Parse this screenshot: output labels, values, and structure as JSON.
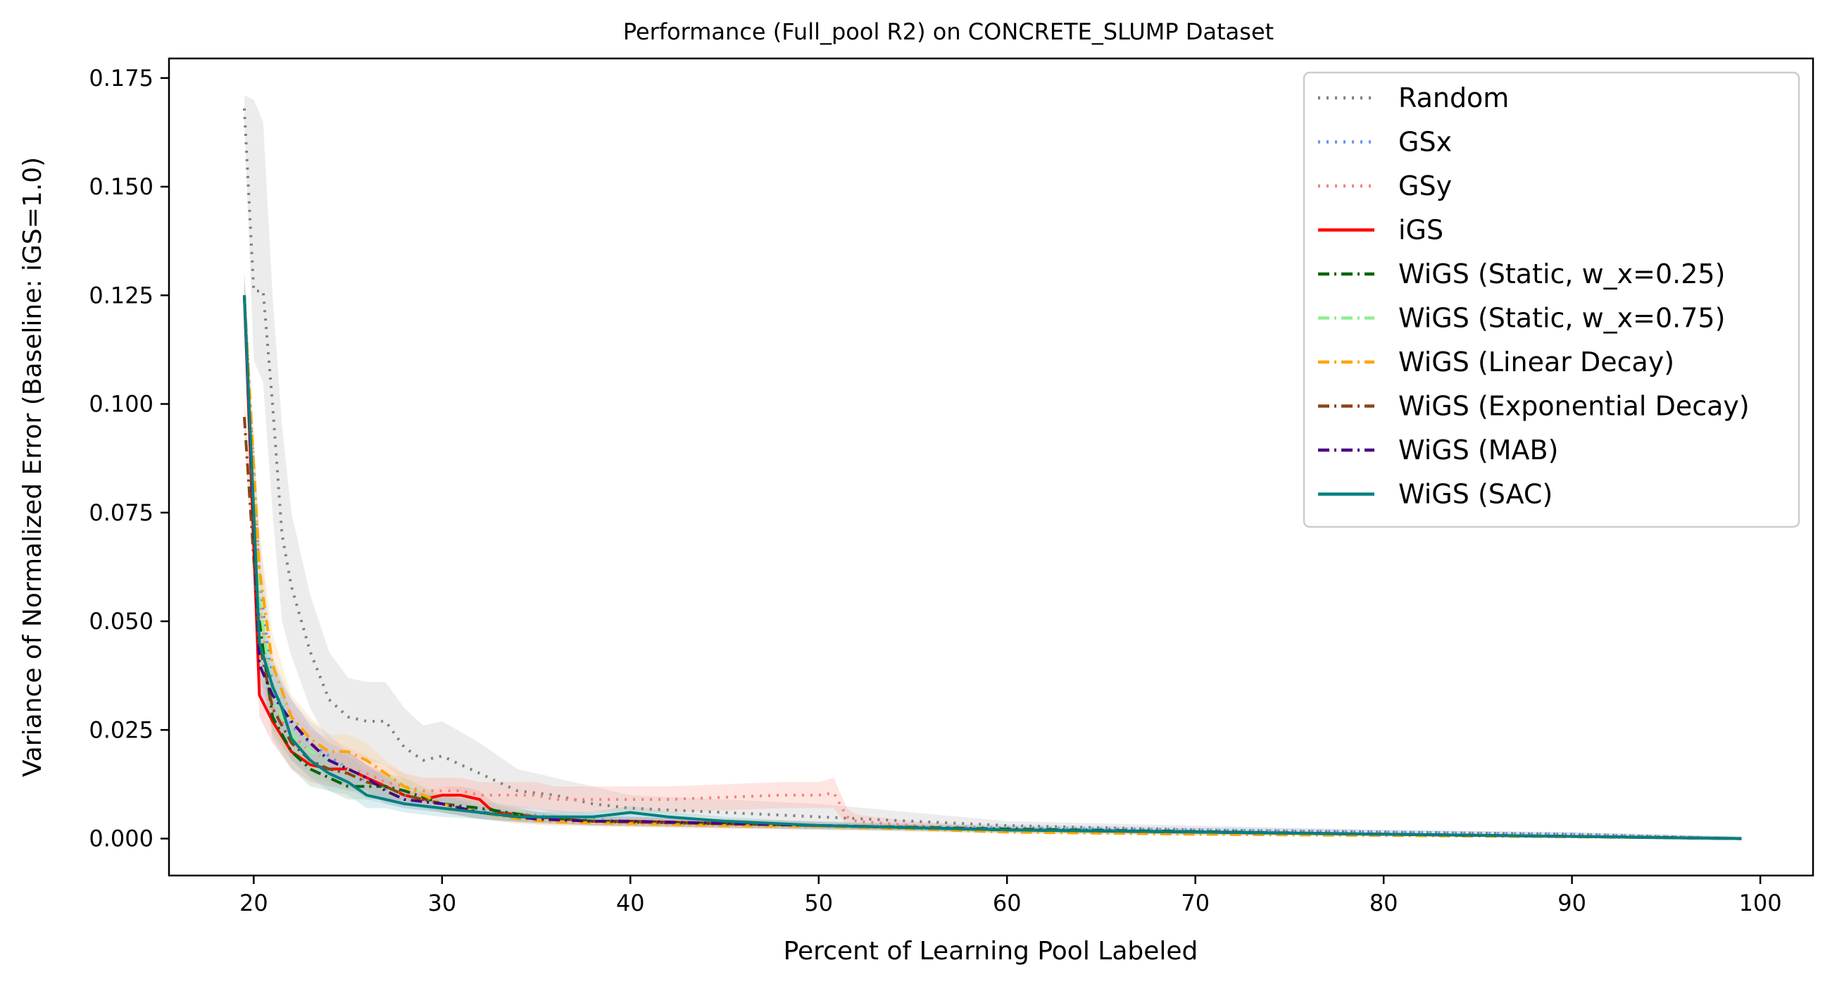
{
  "chart_data": {
    "type": "line",
    "title": "Performance (Full_pool R2) on CONCRETE_SLUMP Dataset",
    "xlabel": "Percent of Learning Pool Labeled",
    "ylabel": "Variance of Normalized Error (Baseline: iGS=1.0)",
    "xlim": [
      15.5,
      102.8
    ],
    "ylim": [
      -0.0085,
      0.1795
    ],
    "xticks": [
      20,
      30,
      40,
      50,
      60,
      70,
      80,
      90,
      100
    ],
    "xtick_labels": [
      "20",
      "30",
      "40",
      "50",
      "60",
      "70",
      "80",
      "90",
      "100"
    ],
    "yticks": [
      0.0,
      0.025,
      0.05,
      0.075,
      0.1,
      0.125,
      0.15,
      0.175
    ],
    "ytick_labels": [
      "0.000",
      "0.025",
      "0.050",
      "0.075",
      "0.100",
      "0.125",
      "0.150",
      "0.175"
    ],
    "grid": false,
    "legend_position": "top-right",
    "series": [
      {
        "name": "Random",
        "color": "#808080",
        "style": "dotted",
        "band_color": "#c8c8c8",
        "x": [
          19.5,
          20,
          20.5,
          21,
          21.5,
          22,
          23,
          24,
          25,
          26,
          27,
          28,
          29,
          30,
          32,
          34,
          36,
          38,
          40,
          45,
          50,
          55,
          60,
          70,
          80,
          90,
          99
        ],
        "y": [
          0.168,
          0.126,
          0.126,
          0.1,
          0.07,
          0.058,
          0.043,
          0.032,
          0.028,
          0.027,
          0.027,
          0.021,
          0.018,
          0.019,
          0.015,
          0.011,
          0.01,
          0.008,
          0.007,
          0.006,
          0.005,
          0.004,
          0.003,
          0.002,
          0.0015,
          0.001,
          0.0
        ],
        "lower": [
          0.165,
          0.11,
          0.105,
          0.075,
          0.05,
          0.042,
          0.03,
          0.022,
          0.019,
          0.018,
          0.017,
          0.013,
          0.011,
          0.012,
          0.009,
          0.007,
          0.006,
          0.005,
          0.004,
          0.003,
          0.003,
          0.002,
          0.002,
          0.001,
          0.001,
          0.0005,
          0.0
        ],
        "upper": [
          0.171,
          0.17,
          0.165,
          0.125,
          0.095,
          0.075,
          0.056,
          0.043,
          0.037,
          0.036,
          0.036,
          0.03,
          0.026,
          0.027,
          0.022,
          0.016,
          0.014,
          0.012,
          0.01,
          0.009,
          0.008,
          0.006,
          0.004,
          0.003,
          0.002,
          0.0015,
          0.0005
        ]
      },
      {
        "name": "GSx",
        "color": "#6495ED",
        "style": "dotted",
        "band_color": "#b4c8f0",
        "x": [
          19.5,
          20.3,
          21,
          22,
          23,
          24,
          25,
          26,
          28,
          30,
          33,
          36,
          40,
          45,
          50,
          55,
          60,
          70,
          80,
          90,
          99
        ],
        "y": [
          0.125,
          0.06,
          0.035,
          0.026,
          0.022,
          0.019,
          0.016,
          0.013,
          0.01,
          0.008,
          0.006,
          0.005,
          0.004,
          0.0035,
          0.003,
          0.0028,
          0.0025,
          0.002,
          0.0015,
          0.001,
          0.0
        ],
        "lower": [
          0.12,
          0.05,
          0.028,
          0.02,
          0.017,
          0.014,
          0.012,
          0.009,
          0.007,
          0.006,
          0.004,
          0.0035,
          0.003,
          0.0025,
          0.002,
          0.002,
          0.0018,
          0.0014,
          0.001,
          0.0006,
          0.0
        ],
        "upper": [
          0.13,
          0.07,
          0.042,
          0.032,
          0.027,
          0.024,
          0.02,
          0.017,
          0.013,
          0.01,
          0.008,
          0.0065,
          0.005,
          0.0045,
          0.004,
          0.0036,
          0.0032,
          0.0026,
          0.002,
          0.0014,
          0.0005
        ]
      },
      {
        "name": "GSy",
        "color": "#FA8072",
        "style": "dotted",
        "band_color": "#fbb4ac",
        "x": [
          19.5,
          20.3,
          21,
          22,
          23,
          24,
          25,
          26,
          27,
          28,
          29,
          30,
          31,
          32,
          33,
          34,
          35,
          36,
          38,
          40,
          42,
          45,
          48,
          50,
          50.8,
          51.5,
          52,
          55,
          60,
          70,
          80,
          90,
          99
        ],
        "y": [
          0.125,
          0.055,
          0.03,
          0.024,
          0.02,
          0.018,
          0.016,
          0.015,
          0.013,
          0.012,
          0.011,
          0.011,
          0.011,
          0.01,
          0.01,
          0.01,
          0.01,
          0.009,
          0.009,
          0.009,
          0.009,
          0.0095,
          0.01,
          0.01,
          0.0105,
          0.005,
          0.004,
          0.003,
          0.002,
          0.0015,
          0.001,
          0.0005,
          0.0
        ],
        "lower": [
          0.12,
          0.045,
          0.024,
          0.018,
          0.015,
          0.013,
          0.011,
          0.011,
          0.009,
          0.009,
          0.008,
          0.008,
          0.008,
          0.007,
          0.007,
          0.007,
          0.007,
          0.006,
          0.006,
          0.006,
          0.006,
          0.0065,
          0.007,
          0.007,
          0.007,
          0.003,
          0.0025,
          0.002,
          0.0015,
          0.001,
          0.0006,
          0.0003,
          0.0
        ],
        "upper": [
          0.13,
          0.065,
          0.036,
          0.03,
          0.025,
          0.023,
          0.021,
          0.019,
          0.017,
          0.015,
          0.014,
          0.014,
          0.014,
          0.013,
          0.013,
          0.013,
          0.013,
          0.012,
          0.012,
          0.012,
          0.012,
          0.0125,
          0.013,
          0.013,
          0.014,
          0.007,
          0.0055,
          0.004,
          0.0025,
          0.002,
          0.0014,
          0.0008,
          0.0004
        ]
      },
      {
        "name": "iGS",
        "color": "#FF0000",
        "style": "solid",
        "band_color": "#f7a0a0",
        "x": [
          19.5,
          20.3,
          21,
          22,
          23,
          24,
          25,
          26,
          27,
          28,
          29,
          30,
          31,
          32,
          32.5,
          33,
          35,
          38,
          40,
          45,
          50,
          55,
          60,
          70,
          80,
          90,
          99
        ],
        "y": [
          0.125,
          0.033,
          0.027,
          0.02,
          0.017,
          0.016,
          0.016,
          0.014,
          0.012,
          0.01,
          0.009,
          0.01,
          0.01,
          0.009,
          0.007,
          0.006,
          0.005,
          0.004,
          0.004,
          0.0035,
          0.003,
          0.0025,
          0.002,
          0.0015,
          0.001,
          0.0005,
          0.0
        ],
        "lower": [
          0.12,
          0.028,
          0.022,
          0.016,
          0.013,
          0.012,
          0.012,
          0.011,
          0.009,
          0.008,
          0.007,
          0.008,
          0.008,
          0.007,
          0.005,
          0.0045,
          0.0038,
          0.003,
          0.003,
          0.0025,
          0.0022,
          0.0018,
          0.0015,
          0.001,
          0.0007,
          0.0003,
          0.0
        ],
        "upper": [
          0.13,
          0.038,
          0.032,
          0.024,
          0.021,
          0.02,
          0.02,
          0.017,
          0.015,
          0.012,
          0.011,
          0.012,
          0.012,
          0.011,
          0.009,
          0.0075,
          0.0062,
          0.005,
          0.005,
          0.0045,
          0.0038,
          0.0032,
          0.0025,
          0.002,
          0.0013,
          0.0008,
          0.0004
        ]
      },
      {
        "name": "WiGS (Static, w_x=0.25)",
        "color": "#006400",
        "style": "dashdot",
        "band_color": "#a8c8a8",
        "x": [
          19.5,
          20.3,
          21,
          22,
          23,
          24,
          25,
          26,
          27,
          28,
          30,
          32,
          35,
          38,
          40,
          45,
          50,
          55,
          60,
          70,
          80,
          90,
          99
        ],
        "y": [
          0.125,
          0.05,
          0.028,
          0.02,
          0.016,
          0.014,
          0.012,
          0.012,
          0.012,
          0.011,
          0.008,
          0.007,
          0.005,
          0.004,
          0.0038,
          0.0034,
          0.003,
          0.0026,
          0.0022,
          0.0016,
          0.001,
          0.0005,
          0.0
        ],
        "lower": [
          0.12,
          0.043,
          0.023,
          0.016,
          0.012,
          0.011,
          0.009,
          0.009,
          0.009,
          0.008,
          0.006,
          0.005,
          0.0038,
          0.003,
          0.0028,
          0.0025,
          0.0022,
          0.0019,
          0.0016,
          0.0011,
          0.0007,
          0.0003,
          0.0
        ],
        "upper": [
          0.13,
          0.057,
          0.033,
          0.024,
          0.02,
          0.017,
          0.015,
          0.015,
          0.015,
          0.014,
          0.01,
          0.009,
          0.0062,
          0.005,
          0.0048,
          0.0043,
          0.0038,
          0.0033,
          0.0028,
          0.0021,
          0.0013,
          0.0008,
          0.0004
        ]
      },
      {
        "name": "WiGS (Static, w_x=0.75)",
        "color": "#90EE90",
        "style": "dashdot",
        "band_color": "#c8f0c8",
        "x": [
          19.5,
          20.3,
          21,
          22,
          23,
          24,
          25,
          26,
          28,
          30,
          32,
          35,
          38,
          40,
          45,
          50,
          55,
          60,
          70,
          80,
          90,
          99
        ],
        "y": [
          0.125,
          0.055,
          0.032,
          0.024,
          0.02,
          0.018,
          0.016,
          0.013,
          0.01,
          0.008,
          0.006,
          0.005,
          0.0042,
          0.0038,
          0.0034,
          0.003,
          0.0024,
          0.0018,
          0.0014,
          0.001,
          0.0005,
          0.0
        ],
        "lower": [
          0.12,
          0.047,
          0.026,
          0.019,
          0.016,
          0.014,
          0.012,
          0.01,
          0.008,
          0.006,
          0.0045,
          0.0038,
          0.0032,
          0.0029,
          0.0025,
          0.0022,
          0.0018,
          0.0013,
          0.001,
          0.0007,
          0.0003,
          0.0
        ],
        "upper": [
          0.13,
          0.063,
          0.038,
          0.029,
          0.024,
          0.022,
          0.02,
          0.016,
          0.012,
          0.01,
          0.0075,
          0.0062,
          0.0052,
          0.0047,
          0.0043,
          0.0038,
          0.003,
          0.0023,
          0.0018,
          0.0013,
          0.0008,
          0.0004
        ]
      },
      {
        "name": "WiGS (Linear Decay)",
        "color": "#FFA500",
        "style": "dashdot",
        "band_color": "#f8d8a0",
        "x": [
          19.5,
          20.3,
          21,
          22,
          23,
          24,
          25,
          26,
          27,
          28,
          29,
          30,
          32,
          34,
          36,
          40,
          45,
          50,
          55,
          60,
          70,
          80,
          90,
          99
        ],
        "y": [
          0.125,
          0.062,
          0.04,
          0.028,
          0.023,
          0.02,
          0.02,
          0.018,
          0.015,
          0.012,
          0.01,
          0.008,
          0.006,
          0.0045,
          0.0038,
          0.0035,
          0.003,
          0.0028,
          0.0022,
          0.0015,
          0.001,
          0.0007,
          0.0004,
          0.0
        ],
        "lower": [
          0.12,
          0.053,
          0.033,
          0.023,
          0.018,
          0.016,
          0.016,
          0.014,
          0.012,
          0.009,
          0.008,
          0.006,
          0.0045,
          0.0034,
          0.0029,
          0.0026,
          0.0022,
          0.002,
          0.0016,
          0.0011,
          0.0007,
          0.0005,
          0.0002,
          0.0
        ],
        "upper": [
          0.13,
          0.071,
          0.047,
          0.033,
          0.028,
          0.024,
          0.024,
          0.022,
          0.018,
          0.015,
          0.012,
          0.01,
          0.0075,
          0.0056,
          0.0047,
          0.0044,
          0.0038,
          0.0036,
          0.0028,
          0.0019,
          0.0013,
          0.0009,
          0.0006,
          0.0003
        ]
      },
      {
        "name": "WiGS (Exponential Decay)",
        "color": "#8B4513",
        "style": "dashdot",
        "band_color": "#d0b8a0",
        "x": [
          19.5,
          20.3,
          21,
          22,
          23,
          24,
          25,
          26,
          27,
          28,
          30,
          32,
          35,
          38,
          40,
          45,
          50,
          55,
          60,
          70,
          80,
          90,
          99
        ],
        "y": [
          0.097,
          0.045,
          0.03,
          0.022,
          0.018,
          0.016,
          0.015,
          0.013,
          0.012,
          0.01,
          0.008,
          0.006,
          0.005,
          0.004,
          0.0038,
          0.0034,
          0.003,
          0.0025,
          0.002,
          0.0015,
          0.001,
          0.0005,
          0.0
        ],
        "lower": [
          0.093,
          0.038,
          0.025,
          0.018,
          0.014,
          0.012,
          0.011,
          0.01,
          0.009,
          0.008,
          0.006,
          0.0045,
          0.0038,
          0.003,
          0.0028,
          0.0025,
          0.0022,
          0.0018,
          0.0014,
          0.001,
          0.0007,
          0.0003,
          0.0
        ],
        "upper": [
          0.101,
          0.052,
          0.035,
          0.026,
          0.022,
          0.02,
          0.019,
          0.016,
          0.015,
          0.012,
          0.01,
          0.0075,
          0.0062,
          0.005,
          0.0048,
          0.0043,
          0.0038,
          0.0032,
          0.0026,
          0.002,
          0.0013,
          0.0008,
          0.0004
        ]
      },
      {
        "name": "WiGS (MAB)",
        "color": "#4B0082",
        "style": "dashdot",
        "band_color": "#b8a8d0",
        "x": [
          19.5,
          20.3,
          21,
          22,
          23,
          24,
          25,
          26,
          27,
          28,
          30,
          32,
          35,
          38,
          40,
          45,
          50,
          55,
          60,
          70,
          80,
          90,
          99
        ],
        "y": [
          0.125,
          0.04,
          0.033,
          0.027,
          0.022,
          0.018,
          0.016,
          0.014,
          0.011,
          0.009,
          0.008,
          0.006,
          0.0045,
          0.004,
          0.004,
          0.0035,
          0.003,
          0.0025,
          0.002,
          0.0015,
          0.001,
          0.0005,
          0.0
        ],
        "lower": [
          0.12,
          0.034,
          0.027,
          0.022,
          0.018,
          0.014,
          0.012,
          0.011,
          0.008,
          0.007,
          0.006,
          0.0045,
          0.0034,
          0.003,
          0.003,
          0.0025,
          0.0022,
          0.0018,
          0.0014,
          0.001,
          0.0007,
          0.0003,
          0.0
        ],
        "upper": [
          0.13,
          0.046,
          0.039,
          0.032,
          0.026,
          0.022,
          0.02,
          0.017,
          0.014,
          0.011,
          0.01,
          0.0075,
          0.0056,
          0.005,
          0.005,
          0.0045,
          0.0038,
          0.0032,
          0.0026,
          0.002,
          0.0013,
          0.0008,
          0.0004
        ]
      },
      {
        "name": "WiGS (SAC)",
        "color": "#008080",
        "style": "solid",
        "band_color": "#98d0d0",
        "x": [
          19.5,
          20.3,
          21,
          21.5,
          22,
          23,
          24,
          25,
          26,
          27,
          28,
          30,
          32,
          34,
          36,
          38,
          40,
          42,
          45,
          50,
          55,
          60,
          70,
          80,
          90,
          99
        ],
        "y": [
          0.125,
          0.045,
          0.035,
          0.03,
          0.023,
          0.018,
          0.015,
          0.013,
          0.01,
          0.009,
          0.008,
          0.007,
          0.006,
          0.005,
          0.005,
          0.005,
          0.006,
          0.005,
          0.004,
          0.003,
          0.0025,
          0.002,
          0.0015,
          0.001,
          0.0005,
          0.0
        ],
        "lower": [
          0.12,
          0.039,
          0.029,
          0.024,
          0.018,
          0.014,
          0.011,
          0.01,
          0.007,
          0.007,
          0.006,
          0.005,
          0.0045,
          0.0038,
          0.0038,
          0.0038,
          0.0045,
          0.0038,
          0.003,
          0.0022,
          0.0018,
          0.0014,
          0.001,
          0.0007,
          0.0003,
          0.0
        ],
        "upper": [
          0.13,
          0.051,
          0.041,
          0.036,
          0.028,
          0.022,
          0.019,
          0.016,
          0.013,
          0.011,
          0.01,
          0.009,
          0.0075,
          0.0062,
          0.0062,
          0.0062,
          0.0075,
          0.0062,
          0.005,
          0.0038,
          0.0032,
          0.0026,
          0.002,
          0.0013,
          0.0008,
          0.0004
        ]
      }
    ]
  }
}
